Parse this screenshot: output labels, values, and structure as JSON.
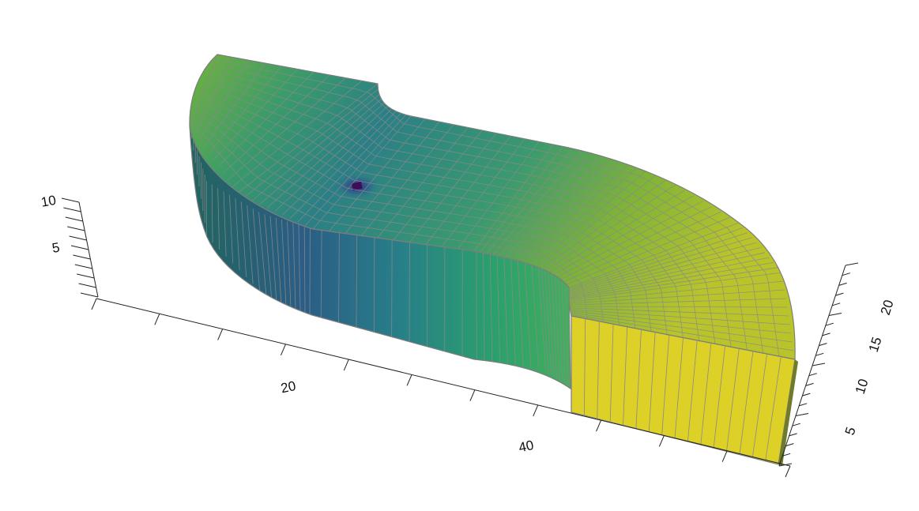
{
  "chart_data": {
    "type": "surface-3d",
    "title": "",
    "axes": {
      "x": {
        "ticks": [
          {
            "value": 20,
            "label": "20"
          },
          {
            "value": 40,
            "label": "40"
          }
        ]
      },
      "y": {
        "ticks": [
          {
            "value": 5,
            "label": "5"
          },
          {
            "value": 10,
            "label": "10"
          },
          {
            "value": 15,
            "label": "15"
          },
          {
            "value": 20,
            "label": "20"
          }
        ]
      },
      "z": {
        "ticks": [
          {
            "value": 5,
            "label": "5"
          },
          {
            "value": 10,
            "label": "10"
          }
        ]
      }
    },
    "colormap": [
      "#440154",
      "#3b528b",
      "#21908c",
      "#5dc863",
      "#fde725"
    ],
    "mesh_edge_color": "#8a8a8a"
  }
}
